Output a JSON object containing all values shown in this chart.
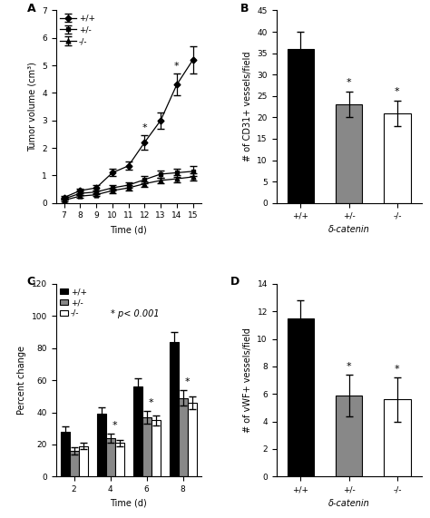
{
  "panel_A": {
    "time": [
      7,
      8,
      9,
      10,
      11,
      12,
      13,
      14,
      15
    ],
    "pp": [
      0.2,
      0.45,
      0.55,
      1.1,
      1.35,
      2.2,
      3.0,
      4.3,
      5.2
    ],
    "pp_err": [
      0.05,
      0.08,
      0.1,
      0.13,
      0.15,
      0.25,
      0.3,
      0.4,
      0.5
    ],
    "pm": [
      0.15,
      0.35,
      0.4,
      0.55,
      0.65,
      0.85,
      1.05,
      1.1,
      1.15
    ],
    "pm_err": [
      0.04,
      0.06,
      0.07,
      0.1,
      0.1,
      0.12,
      0.12,
      0.15,
      0.18
    ],
    "mm": [
      0.1,
      0.25,
      0.3,
      0.45,
      0.55,
      0.7,
      0.82,
      0.88,
      0.95
    ],
    "mm_err": [
      0.03,
      0.05,
      0.06,
      0.08,
      0.09,
      0.1,
      0.11,
      0.12,
      0.13
    ],
    "ylabel": "Tumor volume (cm³)",
    "xlabel": "Time (d)",
    "ylim": [
      0,
      7
    ],
    "yticks": [
      0,
      1,
      2,
      3,
      4,
      5,
      6,
      7
    ],
    "star_days": [
      12,
      14
    ],
    "title": "A"
  },
  "panel_B": {
    "categories": [
      "+/+",
      "+/-",
      "-/-"
    ],
    "values": [
      36,
      23,
      21
    ],
    "errors": [
      4,
      3,
      3
    ],
    "colors": [
      "black",
      "#888888",
      "white"
    ],
    "ylabel": "# of CD31+ vessels/field",
    "xlabel": "δ-catenin",
    "ylim": [
      0,
      45
    ],
    "yticks": [
      0,
      5,
      10,
      15,
      20,
      25,
      30,
      35,
      40,
      45
    ],
    "star_bars": [
      1,
      2
    ],
    "title": "B"
  },
  "panel_C": {
    "time": [
      2,
      4,
      6,
      8
    ],
    "pp": [
      28,
      39,
      56,
      84
    ],
    "pp_err": [
      3,
      4,
      5,
      6
    ],
    "pm": [
      16,
      24,
      37,
      49
    ],
    "pm_err": [
      2,
      3,
      4,
      5
    ],
    "mm": [
      19,
      21,
      35,
      46
    ],
    "mm_err": [
      2,
      2,
      3,
      4
    ],
    "ylabel": "Percent change",
    "xlabel": "Time (d)",
    "ylim": [
      0,
      120
    ],
    "yticks": [
      0,
      20,
      40,
      60,
      80,
      100,
      120
    ],
    "star_days": [
      4,
      6,
      8
    ],
    "annotation": "* p< 0.001",
    "title": "C"
  },
  "panel_D": {
    "categories": [
      "+/+",
      "+/-",
      "-/-"
    ],
    "values": [
      11.5,
      5.9,
      5.6
    ],
    "errors": [
      1.3,
      1.5,
      1.6
    ],
    "colors": [
      "black",
      "#888888",
      "white"
    ],
    "ylabel": "# of vWF+ vessels/field",
    "xlabel": "δ-catenin",
    "ylim": [
      0,
      14
    ],
    "yticks": [
      0,
      2,
      4,
      6,
      8,
      10,
      12,
      14
    ],
    "star_bars": [
      1,
      2
    ],
    "title": "D"
  },
  "bar_edgecolor": "black",
  "error_capsize": 3,
  "fontsize_label": 7,
  "fontsize_tick": 6.5,
  "fontsize_title": 9,
  "fontsize_legend": 6.5,
  "fontsize_star": 8,
  "fontsize_annot": 7
}
